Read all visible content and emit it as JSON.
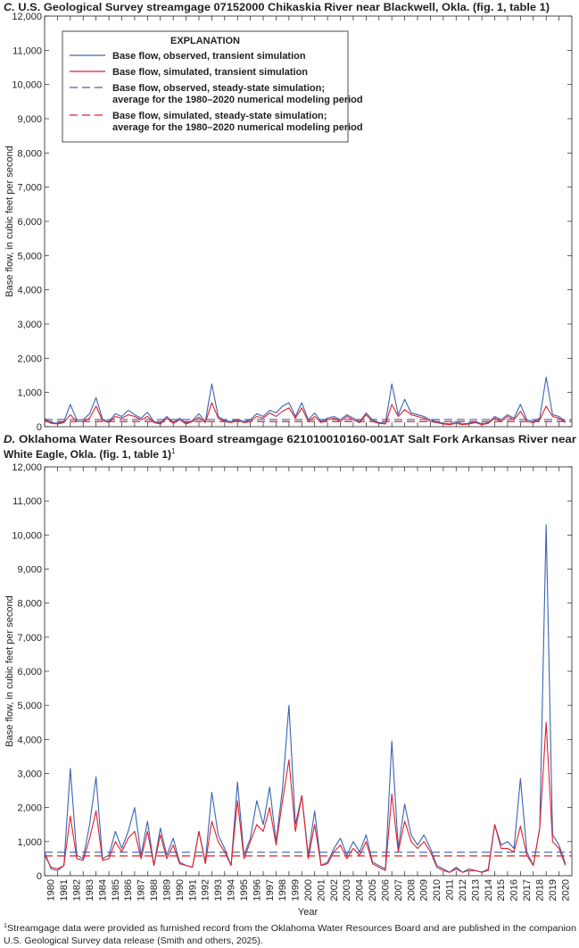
{
  "chart_data": [
    {
      "type": "line",
      "letter": "C.",
      "title": "U.S. Geological Survey streamgage 07152000 Chikaskia River near Blackwell, Okla. (fig. 1, table 1)",
      "y_label": "Base flow, in cubic feet per second",
      "legend_title": "EXPLANATION",
      "xlim": [
        1980,
        2021
      ],
      "ylim": [
        0,
        12000
      ],
      "xticks": [
        1980,
        1981,
        1982,
        1983,
        1984,
        1985,
        1986,
        1987,
        1988,
        1989,
        1990,
        1991,
        1992,
        1993,
        1994,
        1995,
        1996,
        1997,
        1998,
        1999,
        2000,
        2001,
        2002,
        2003,
        2004,
        2005,
        2006,
        2007,
        2008,
        2009,
        2010,
        2011,
        2012,
        2013,
        2014,
        2015,
        2016,
        2017,
        2018,
        2019,
        2020
      ],
      "yticks": [
        0,
        {
          "value": 1000,
          "label": "1,000"
        },
        {
          "value": 2000,
          "label": "2,000"
        },
        {
          "value": 3000,
          "label": "3,000"
        },
        {
          "value": 4000,
          "label": "4,000"
        },
        {
          "value": 5000,
          "label": "5,000"
        },
        {
          "value": 6000,
          "label": "6,000"
        },
        {
          "value": 7000,
          "label": "7,000"
        },
        {
          "value": 8000,
          "label": "8,000"
        },
        {
          "value": 9000,
          "label": "9,000"
        },
        {
          "value": 10000,
          "label": "10,000"
        },
        {
          "value": 11000,
          "label": "11,000"
        },
        {
          "value": 12000,
          "label": "12,000"
        }
      ],
      "x": [
        1980,
        1980.5,
        1981,
        1981.5,
        1982,
        1982.5,
        1983,
        1983.5,
        1984,
        1984.5,
        1985,
        1985.5,
        1986,
        1986.5,
        1987,
        1987.5,
        1988,
        1988.5,
        1989,
        1989.5,
        1990,
        1990.5,
        1991,
        1991.5,
        1992,
        1992.5,
        1993,
        1993.5,
        1994,
        1994.5,
        1995,
        1995.5,
        1996,
        1996.5,
        1997,
        1997.5,
        1998,
        1998.5,
        1999,
        1999.5,
        2000,
        2000.5,
        2001,
        2001.5,
        2002,
        2002.5,
        2003,
        2003.5,
        2004,
        2004.5,
        2005,
        2005.5,
        2006,
        2006.5,
        2007,
        2007.5,
        2008,
        2008.5,
        2009,
        2009.5,
        2010,
        2010.5,
        2011,
        2011.5,
        2012,
        2012.5,
        2013,
        2013.5,
        2014,
        2014.5,
        2015,
        2015.5,
        2016,
        2016.5,
        2017,
        2017.5,
        2018,
        2018.5,
        2019,
        2019.5,
        2020,
        2020.5
      ],
      "series": [
        {
          "name": "Base flow, observed, transient simulation",
          "color": "#3b63b3",
          "values": [
            250,
            120,
            100,
            150,
            650,
            200,
            200,
            380,
            850,
            220,
            150,
            380,
            300,
            480,
            350,
            250,
            420,
            150,
            100,
            300,
            120,
            250,
            100,
            180,
            380,
            150,
            1250,
            300,
            180,
            150,
            220,
            150,
            200,
            380,
            300,
            480,
            400,
            600,
            700,
            300,
            700,
            200,
            400,
            150,
            250,
            300,
            200,
            350,
            250,
            150,
            400,
            200,
            120,
            100,
            1250,
            350,
            800,
            400,
            350,
            300,
            200,
            150,
            100,
            80,
            150,
            80,
            100,
            150,
            80,
            120,
            300,
            200,
            350,
            250,
            650,
            200,
            150,
            250,
            1450,
            350,
            300,
            150
          ]
        },
        {
          "name": "Base flow, simulated, transient simulation",
          "color": "#e3202a",
          "values": [
            200,
            100,
            80,
            120,
            350,
            150,
            150,
            250,
            600,
            180,
            120,
            300,
            250,
            350,
            300,
            200,
            300,
            120,
            80,
            250,
            100,
            200,
            80,
            150,
            280,
            120,
            700,
            250,
            150,
            120,
            180,
            120,
            150,
            300,
            250,
            400,
            300,
            450,
            550,
            250,
            550,
            150,
            300,
            120,
            200,
            250,
            150,
            300,
            200,
            120,
            350,
            150,
            100,
            80,
            650,
            300,
            500,
            350,
            300,
            250,
            150,
            120,
            80,
            60,
            100,
            60,
            80,
            120,
            60,
            100,
            250,
            150,
            300,
            200,
            450,
            150,
            120,
            200,
            600,
            300,
            250,
            120
          ]
        }
      ],
      "reference_lines": [
        {
          "name": "Base flow, observed, steady-state simulation; average for the 1980–2020 numerical modeling period",
          "color": "#3b63b3",
          "value": 210
        },
        {
          "name": "Base flow, simulated, steady-state simulation; average for the 1980–2020 numerical modeling period",
          "color": "#e3202a",
          "value": 150
        }
      ]
    },
    {
      "type": "line",
      "letter": "D.",
      "title": [
        "Oklahoma Water Resources Board streamgage 621010010160-001AT Salt Fork Arkansas River near",
        "White Eagle, Okla. (fig. 1, table 1)"
      ],
      "title_note_mark": "1",
      "y_label": "Base flow, in cubic feet per second",
      "x_label": "Year",
      "xlim": [
        1980,
        2021
      ],
      "ylim": [
        0,
        12000
      ],
      "xticks": [
        1980,
        1981,
        1982,
        1983,
        1984,
        1985,
        1986,
        1987,
        1988,
        1989,
        1990,
        1991,
        1992,
        1993,
        1994,
        1995,
        1996,
        1997,
        1998,
        1999,
        2000,
        2001,
        2002,
        2003,
        2004,
        2005,
        2006,
        2007,
        2008,
        2009,
        2010,
        2011,
        2012,
        2013,
        2014,
        2015,
        2016,
        2017,
        2018,
        2019,
        2020
      ],
      "yticks": [
        0,
        {
          "value": 1000,
          "label": "1,000"
        },
        {
          "value": 2000,
          "label": "2,000"
        },
        {
          "value": 3000,
          "label": "3,000"
        },
        {
          "value": 4000,
          "label": "4,000"
        },
        {
          "value": 5000,
          "label": "5,000"
        },
        {
          "value": 6000,
          "label": "6,000"
        },
        {
          "value": 7000,
          "label": "7,000"
        },
        {
          "value": 8000,
          "label": "8,000"
        },
        {
          "value": 9000,
          "label": "9,000"
        },
        {
          "value": 10000,
          "label": "10,000"
        },
        {
          "value": 11000,
          "label": "11,000"
        },
        {
          "value": 12000,
          "label": "12,000"
        }
      ],
      "x": [
        1980,
        1980.5,
        1981,
        1981.5,
        1982,
        1982.5,
        1983,
        1983.5,
        1984,
        1984.5,
        1985,
        1985.5,
        1986,
        1986.5,
        1987,
        1987.5,
        1988,
        1988.5,
        1989,
        1989.5,
        1990,
        1990.5,
        1991,
        1991.5,
        1992,
        1992.5,
        1993,
        1993.5,
        1994,
        1994.5,
        1995,
        1995.5,
        1996,
        1996.5,
        1997,
        1997.5,
        1998,
        1998.5,
        1999,
        1999.5,
        2000,
        2000.5,
        2001,
        2001.5,
        2002,
        2002.5,
        2003,
        2003.5,
        2004,
        2004.5,
        2005,
        2005.5,
        2006,
        2006.5,
        2007,
        2007.5,
        2008,
        2008.5,
        2009,
        2009.5,
        2010,
        2010.5,
        2011,
        2011.5,
        2012,
        2012.5,
        2013,
        2013.5,
        2014,
        2014.5,
        2015,
        2015.5,
        2016,
        2016.5,
        2017,
        2017.5,
        2018,
        2018.5,
        2019,
        2019.5,
        2020,
        2020.5
      ],
      "series": [
        {
          "color": "#3b63b3",
          "values": [
            700,
            200,
            150,
            300,
            3150,
            600,
            500,
            1500,
            2900,
            500,
            600,
            1300,
            800,
            1300,
            2000,
            600,
            1600,
            300,
            1400,
            600,
            1100,
            400,
            300,
            250,
            1300,
            400,
            2450,
            1200,
            800,
            300,
            2750,
            600,
            1100,
            2200,
            1500,
            2600,
            1000,
            2550,
            5000,
            1500,
            2350,
            600,
            1900,
            300,
            400,
            800,
            1100,
            600,
            1000,
            700,
            1200,
            400,
            300,
            200,
            3950,
            800,
            2100,
            1200,
            900,
            1200,
            800,
            300,
            200,
            100,
            250,
            100,
            200,
            150,
            100,
            200,
            1500,
            900,
            1000,
            800,
            2850,
            700,
            300,
            1400,
            10300,
            1200,
            900,
            350
          ]
        },
        {
          "color": "#e3202a",
          "values": [
            600,
            250,
            200,
            300,
            1750,
            500,
            450,
            1100,
            1900,
            450,
            500,
            1000,
            700,
            1100,
            1300,
            500,
            1300,
            300,
            1200,
            500,
            900,
            350,
            300,
            250,
            1300,
            350,
            1600,
            1000,
            700,
            300,
            2200,
            500,
            1000,
            1500,
            1300,
            2000,
            900,
            2200,
            3400,
            1300,
            2350,
            500,
            1500,
            300,
            350,
            700,
            900,
            500,
            800,
            600,
            1000,
            350,
            250,
            150,
            2400,
            700,
            1600,
            1000,
            800,
            1000,
            700,
            250,
            150,
            100,
            200,
            100,
            150,
            150,
            100,
            150,
            1500,
            800,
            800,
            700,
            1450,
            600,
            300,
            1400,
            4500,
            1000,
            800,
            300
          ]
        }
      ],
      "reference_lines": [
        {
          "color": "#3b63b3",
          "value": 690
        },
        {
          "color": "#e3202a",
          "value": 580
        }
      ]
    }
  ],
  "footnote": {
    "mark": "1",
    "lines": [
      "Streamgage data were provided as furnished record from the Oklahoma Water Resources Board and are published in the companion",
      "U.S. Geological Survey data release (Smith and others, 2025)."
    ]
  }
}
